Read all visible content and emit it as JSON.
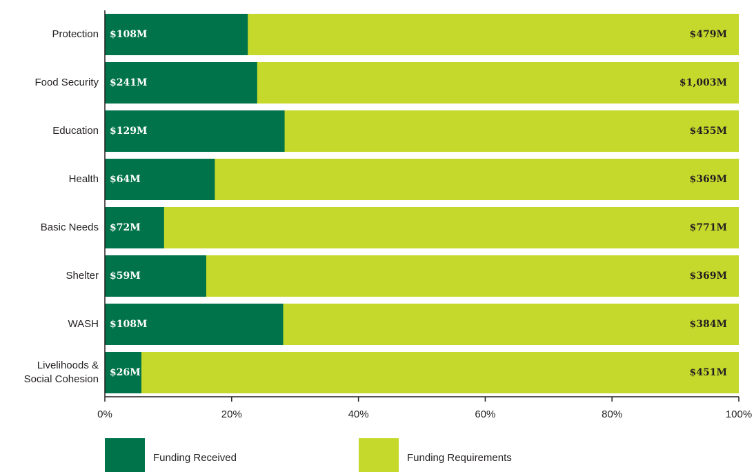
{
  "chart_data": {
    "type": "bar",
    "orientation": "horizontal",
    "stacking": "percent",
    "categories": [
      "Protection",
      "Food Security",
      "Education",
      "Health",
      "Basic Needs",
      "Shelter",
      "WASH",
      "Livelihoods & Social Cohesion"
    ],
    "series": [
      {
        "name": "Funding Received",
        "color": "#00734a",
        "label_color": "#ffffff",
        "values": [
          108,
          241,
          129,
          64,
          72,
          59,
          108,
          26
        ],
        "value_labels": [
          "$108M",
          "$241M",
          "$129M",
          "$64M",
          "$72M",
          "$59M",
          "$108M",
          "$26M"
        ]
      },
      {
        "name": "Funding Requirements",
        "color": "#c5d92d",
        "label_color": "#231f20",
        "values": [
          479,
          1003,
          455,
          369,
          771,
          369,
          384,
          451
        ],
        "value_labels": [
          "$479M",
          "$1,003M",
          "$455M",
          "$369M",
          "$771M",
          "$369M",
          "$384M",
          "$451M"
        ]
      }
    ],
    "xlim": [
      0,
      100
    ],
    "xticks": [
      {
        "value": 0,
        "label": "0%"
      },
      {
        "value": 20,
        "label": "20%"
      },
      {
        "value": 40,
        "label": "40%"
      },
      {
        "value": 60,
        "label": "60%"
      },
      {
        "value": 80,
        "label": "80%"
      },
      {
        "value": 100,
        "label": "100%"
      }
    ],
    "grid": false
  }
}
